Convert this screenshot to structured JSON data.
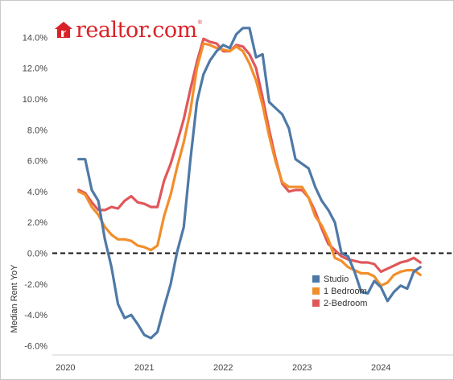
{
  "brand": {
    "logo_text": "realtor.com",
    "logo_mark": "®",
    "logo_color": "#d92228"
  },
  "chart_data": {
    "type": "line",
    "title": "",
    "xlabel": "",
    "ylabel": "Median Rent YoY",
    "x_ticks": [
      "2020",
      "2021",
      "2022",
      "2023",
      "2024"
    ],
    "y_ticks": [
      "14.0%",
      "12.0%",
      "10.0%",
      "8.0%",
      "6.0%",
      "4.0%",
      "2.0%",
      "0.0%",
      "-2.0%",
      "-4.0%",
      "-6.0%"
    ],
    "ylim": [
      -6.6,
      14.8
    ],
    "xlim": [
      "2019-11",
      "2024-12"
    ],
    "zero_line": "dashed",
    "grid": false,
    "legend_position": "bottom-right",
    "series": [
      {
        "name": "Studio",
        "color": "#4e79a7",
        "points": [
          [
            "2020-03",
            6.1
          ],
          [
            "2020-04",
            6.1
          ],
          [
            "2020-05",
            4.1
          ],
          [
            "2020-06",
            3.4
          ],
          [
            "2020-07",
            0.9
          ],
          [
            "2020-08",
            -0.9
          ],
          [
            "2020-09",
            -3.3
          ],
          [
            "2020-10",
            -4.2
          ],
          [
            "2020-11",
            -4.0
          ],
          [
            "2020-12",
            -4.6
          ],
          [
            "2021-01",
            -5.3
          ],
          [
            "2021-02",
            -5.5
          ],
          [
            "2021-03",
            -5.1
          ],
          [
            "2021-04",
            -3.5
          ],
          [
            "2021-05",
            -2.0
          ],
          [
            "2021-06",
            0.1
          ],
          [
            "2021-07",
            1.7
          ],
          [
            "2021-08",
            6.0
          ],
          [
            "2021-09",
            9.8
          ],
          [
            "2021-10",
            11.6
          ],
          [
            "2021-11",
            12.5
          ],
          [
            "2021-12",
            13.1
          ],
          [
            "2022-01",
            13.5
          ],
          [
            "2022-02",
            13.3
          ],
          [
            "2022-03",
            14.2
          ],
          [
            "2022-04",
            14.6
          ],
          [
            "2022-05",
            14.6
          ],
          [
            "2022-06",
            12.7
          ],
          [
            "2022-07",
            12.9
          ],
          [
            "2022-08",
            9.8
          ],
          [
            "2022-09",
            9.4
          ],
          [
            "2022-10",
            9.0
          ],
          [
            "2022-11",
            8.1
          ],
          [
            "2022-12",
            6.1
          ],
          [
            "2023-01",
            5.8
          ],
          [
            "2023-02",
            5.5
          ],
          [
            "2023-03",
            4.3
          ],
          [
            "2023-04",
            3.4
          ],
          [
            "2023-05",
            2.8
          ],
          [
            "2023-06",
            2.0
          ],
          [
            "2023-07",
            0.0
          ],
          [
            "2023-08",
            -0.2
          ],
          [
            "2023-09",
            -1.2
          ],
          [
            "2023-10",
            -2.5
          ],
          [
            "2023-11",
            -2.6
          ],
          [
            "2023-12",
            -1.8
          ],
          [
            "2024-01",
            -2.2
          ],
          [
            "2024-02",
            -3.1
          ],
          [
            "2024-03",
            -2.5
          ],
          [
            "2024-04",
            -2.1
          ],
          [
            "2024-05",
            -2.3
          ],
          [
            "2024-06",
            -1.2
          ],
          [
            "2024-07",
            -0.9
          ]
        ]
      },
      {
        "name": "1 Bedroom",
        "color": "#f28e2b",
        "points": [
          [
            "2020-03",
            4.0
          ],
          [
            "2020-04",
            3.8
          ],
          [
            "2020-05",
            3.0
          ],
          [
            "2020-06",
            2.5
          ],
          [
            "2020-07",
            1.7
          ],
          [
            "2020-08",
            1.2
          ],
          [
            "2020-09",
            0.9
          ],
          [
            "2020-10",
            0.9
          ],
          [
            "2020-11",
            0.8
          ],
          [
            "2020-12",
            0.5
          ],
          [
            "2021-01",
            0.4
          ],
          [
            "2021-02",
            0.2
          ],
          [
            "2021-03",
            0.5
          ],
          [
            "2021-04",
            2.4
          ],
          [
            "2021-05",
            3.8
          ],
          [
            "2021-06",
            5.6
          ],
          [
            "2021-07",
            7.2
          ],
          [
            "2021-08",
            9.2
          ],
          [
            "2021-09",
            12.0
          ],
          [
            "2021-10",
            13.6
          ],
          [
            "2021-11",
            13.5
          ],
          [
            "2021-12",
            13.3
          ],
          [
            "2022-01",
            13.2
          ],
          [
            "2022-02",
            13.1
          ],
          [
            "2022-03",
            13.4
          ],
          [
            "2022-04",
            13.1
          ],
          [
            "2022-05",
            12.3
          ],
          [
            "2022-06",
            11.2
          ],
          [
            "2022-07",
            9.6
          ],
          [
            "2022-08",
            7.6
          ],
          [
            "2022-09",
            5.9
          ],
          [
            "2022-10",
            4.6
          ],
          [
            "2022-11",
            4.3
          ],
          [
            "2022-12",
            4.3
          ],
          [
            "2023-01",
            4.3
          ],
          [
            "2023-02",
            3.6
          ],
          [
            "2023-03",
            2.4
          ],
          [
            "2023-04",
            1.8
          ],
          [
            "2023-05",
            0.9
          ],
          [
            "2023-06",
            -0.3
          ],
          [
            "2023-07",
            -0.5
          ],
          [
            "2023-08",
            -0.9
          ],
          [
            "2023-09",
            -1.1
          ],
          [
            "2023-10",
            -1.3
          ],
          [
            "2023-11",
            -1.3
          ],
          [
            "2023-12",
            -1.5
          ],
          [
            "2024-01",
            -2.1
          ],
          [
            "2024-02",
            -1.9
          ],
          [
            "2024-03",
            -1.4
          ],
          [
            "2024-04",
            -1.2
          ],
          [
            "2024-05",
            -1.1
          ],
          [
            "2024-06",
            -1.1
          ],
          [
            "2024-07",
            -1.4
          ]
        ]
      },
      {
        "name": "2-Bedroom",
        "color": "#e15759",
        "points": [
          [
            "2020-03",
            4.1
          ],
          [
            "2020-04",
            3.9
          ],
          [
            "2020-05",
            3.3
          ],
          [
            "2020-06",
            2.8
          ],
          [
            "2020-07",
            2.8
          ],
          [
            "2020-08",
            3.0
          ],
          [
            "2020-09",
            2.9
          ],
          [
            "2020-10",
            3.4
          ],
          [
            "2020-11",
            3.7
          ],
          [
            "2020-12",
            3.3
          ],
          [
            "2021-01",
            3.2
          ],
          [
            "2021-02",
            3.0
          ],
          [
            "2021-03",
            3.0
          ],
          [
            "2021-04",
            4.7
          ],
          [
            "2021-05",
            5.8
          ],
          [
            "2021-06",
            7.2
          ],
          [
            "2021-07",
            8.7
          ],
          [
            "2021-08",
            10.6
          ],
          [
            "2021-09",
            12.4
          ],
          [
            "2021-10",
            13.9
          ],
          [
            "2021-11",
            13.7
          ],
          [
            "2021-12",
            13.6
          ],
          [
            "2022-01",
            13.1
          ],
          [
            "2022-02",
            13.1
          ],
          [
            "2022-03",
            13.5
          ],
          [
            "2022-04",
            13.4
          ],
          [
            "2022-05",
            12.9
          ],
          [
            "2022-06",
            12.0
          ],
          [
            "2022-07",
            10.1
          ],
          [
            "2022-08",
            8.0
          ],
          [
            "2022-09",
            6.1
          ],
          [
            "2022-10",
            4.5
          ],
          [
            "2022-11",
            4.0
          ],
          [
            "2022-12",
            4.1
          ],
          [
            "2023-01",
            4.1
          ],
          [
            "2023-02",
            3.6
          ],
          [
            "2023-03",
            2.7
          ],
          [
            "2023-04",
            1.6
          ],
          [
            "2023-05",
            0.6
          ],
          [
            "2023-06",
            0.2
          ],
          [
            "2023-07",
            -0.2
          ],
          [
            "2023-08",
            -0.4
          ],
          [
            "2023-09",
            -0.5
          ],
          [
            "2023-10",
            -0.6
          ],
          [
            "2023-11",
            -0.6
          ],
          [
            "2023-12",
            -0.7
          ],
          [
            "2024-01",
            -1.2
          ],
          [
            "2024-02",
            -1.0
          ],
          [
            "2024-03",
            -0.8
          ],
          [
            "2024-04",
            -0.6
          ],
          [
            "2024-05",
            -0.5
          ],
          [
            "2024-06",
            -0.3
          ],
          [
            "2024-07",
            -0.6
          ]
        ]
      }
    ]
  }
}
